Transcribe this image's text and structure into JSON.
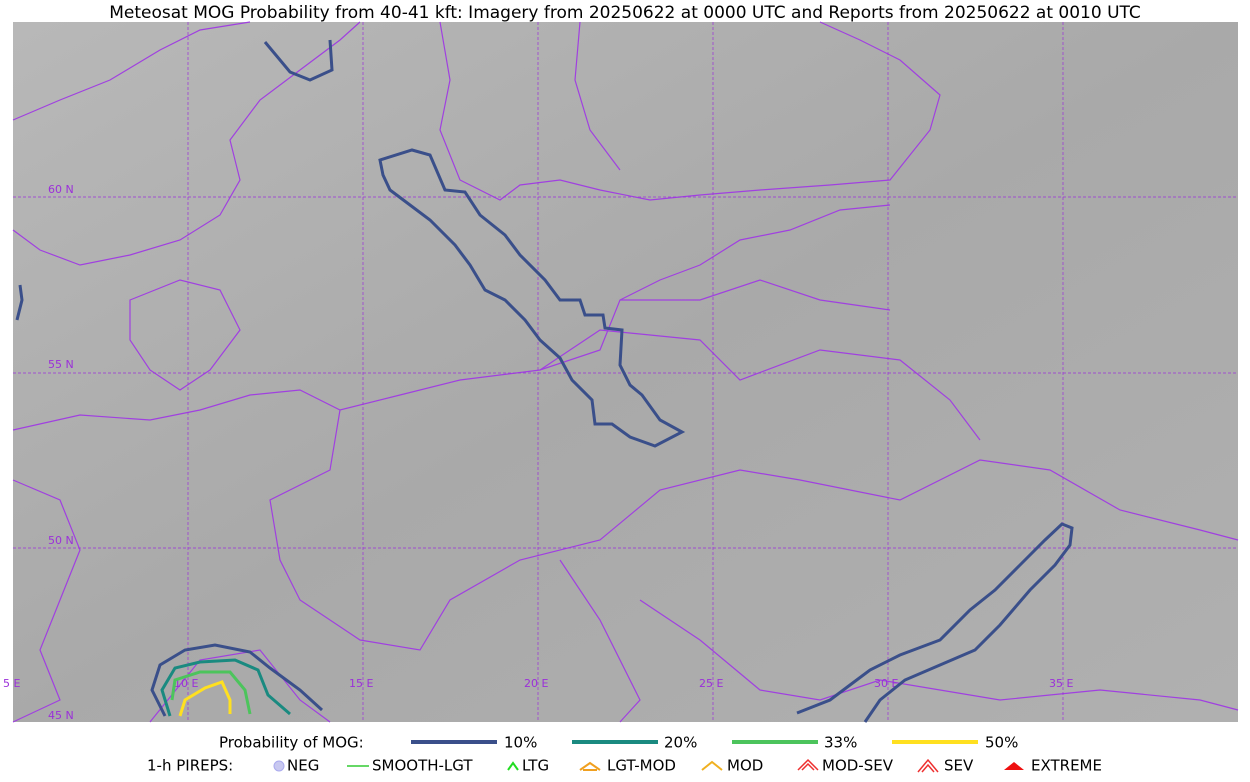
{
  "title": "Meteosat MOG Probability from 40-41 kft: Imagery from 20250622 at 0000 UTC and Reports from 20250622 at 0010 UTC",
  "grid_labels": {
    "lat": [
      "60 N",
      "55 N",
      "50 N",
      "45 N"
    ],
    "lon": [
      "5 E",
      "10 E",
      "15 E",
      "20 E",
      "25 E",
      "30 E",
      "35 E"
    ]
  },
  "legend": {
    "title": "Probability of MOG:",
    "items": [
      "10%",
      "20%",
      "33%",
      "50%"
    ]
  },
  "pireps": {
    "title": "1-h PIREPS:",
    "items": [
      "NEG",
      "SMOOTH-LGT",
      "LTG",
      "LGT-MOD",
      "MOD",
      "MOD-SEV",
      "SEV",
      "EXTREME"
    ]
  }
}
